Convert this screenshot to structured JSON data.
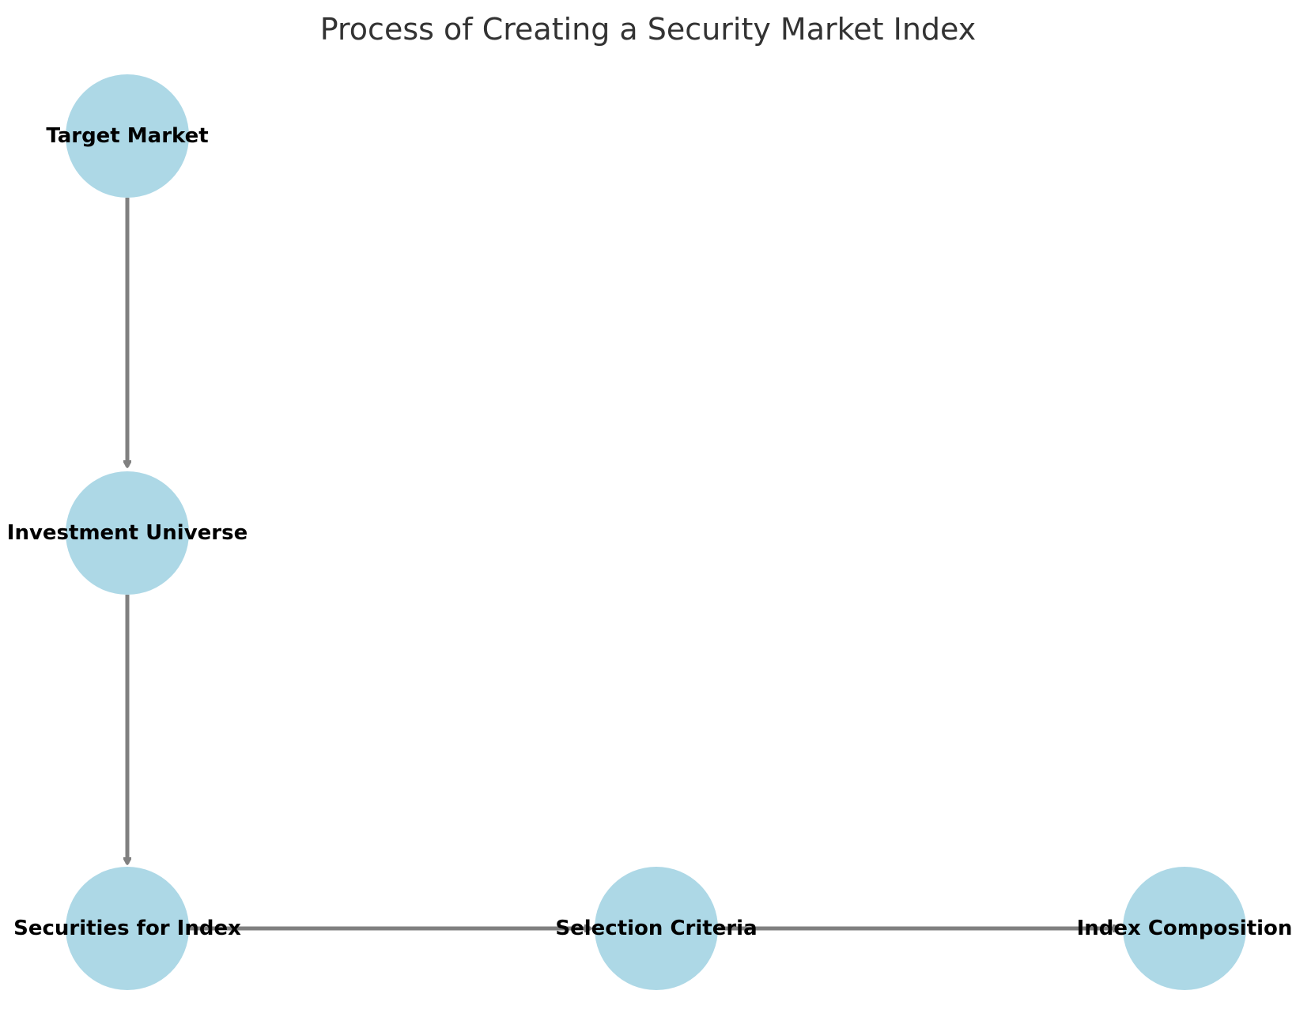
{
  "title": "Process of Creating a Security Market Index",
  "colors": {
    "node_fill": "#ADD8E6",
    "edge": "#808080",
    "label": "#000000",
    "title": "#333333"
  },
  "nodes": [
    {
      "id": "target-market",
      "label": "Target Market"
    },
    {
      "id": "investment-universe",
      "label": "Investment Universe"
    },
    {
      "id": "securities-for-index",
      "label": "Securities for Index"
    },
    {
      "id": "selection-criteria",
      "label": "Selection Criteria"
    },
    {
      "id": "index-composition",
      "label": "Index Composition"
    }
  ],
  "edges": [
    {
      "from": "target-market",
      "to": "investment-universe"
    },
    {
      "from": "investment-universe",
      "to": "securities-for-index"
    },
    {
      "from": "securities-for-index",
      "to": "selection-criteria"
    },
    {
      "from": "selection-criteria",
      "to": "index-composition"
    }
  ]
}
